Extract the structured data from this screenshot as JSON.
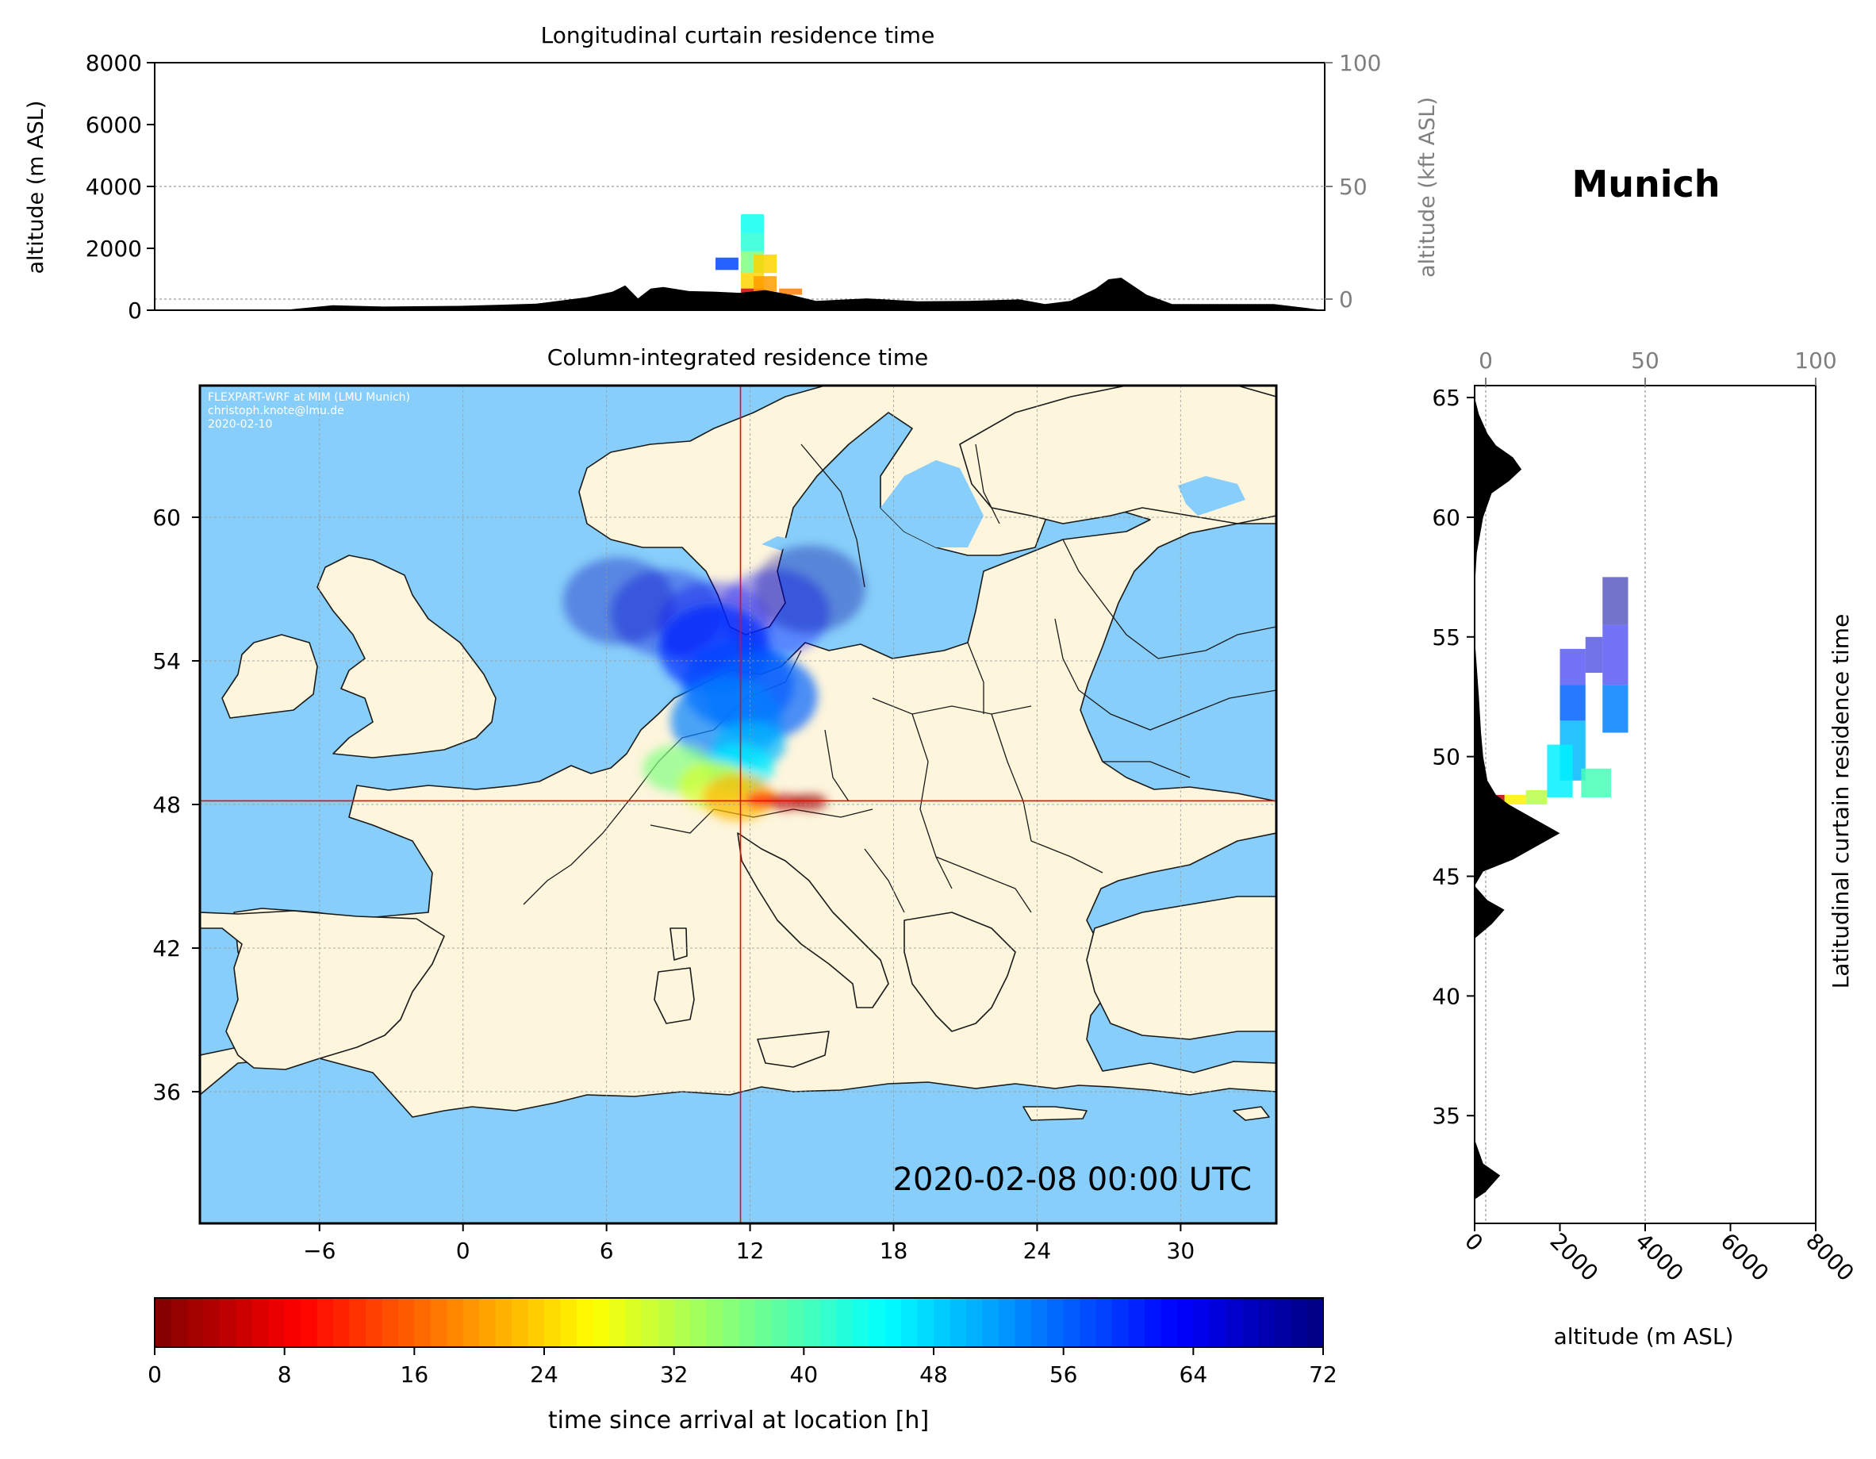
{
  "site": "Munich",
  "colors": {
    "ocean": "#87cefa",
    "land": "#fdf5dc",
    "border": "#1a1a1a",
    "crosshair": "#ff0000",
    "terrain": "#000000",
    "secondary_axis": "#7f7f7f"
  },
  "chart_data": [
    {
      "id": "longitudinal-curtain",
      "type": "heatmap",
      "title": "Longitudinal curtain residence time",
      "ylabel": "altitude (m ASL)",
      "ylabel_right": "altitude (kft ASL)",
      "ylim": [
        0,
        8000
      ],
      "yticks": [
        "0",
        "2000",
        "4000",
        "6000",
        "8000"
      ],
      "yticks_right": [
        "0",
        "50",
        "100"
      ],
      "xlim": [
        -12,
        34
      ],
      "terrain_profile": {
        "x": [
          -12,
          -7,
          -5,
          -3,
          0,
          3,
          5,
          6,
          6.5,
          7,
          7.5,
          8,
          9,
          10,
          11,
          12,
          13,
          14,
          16,
          18,
          20,
          22,
          23,
          24,
          25,
          25.5,
          26,
          27,
          28,
          30,
          32,
          34
        ],
        "altitude": [
          0,
          0,
          160,
          120,
          140,
          210,
          420,
          600,
          800,
          380,
          700,
          750,
          620,
          600,
          560,
          650,
          500,
          300,
          380,
          290,
          300,
          350,
          200,
          300,
          700,
          1000,
          1050,
          500,
          200,
          200,
          200,
          0
        ]
      },
      "plume_cells": [
        {
          "lon": 11.5,
          "alt_min": 2500,
          "alt_max": 3100,
          "hours": 44
        },
        {
          "lon": 11.5,
          "alt_min": 1900,
          "alt_max": 2500,
          "hours": 42
        },
        {
          "lon": 11.5,
          "alt_min": 1200,
          "alt_max": 1900,
          "hours": 36
        },
        {
          "lon": 11.5,
          "alt_min": 700,
          "alt_max": 1200,
          "hours": 24
        },
        {
          "lon": 11.5,
          "alt_min": 400,
          "alt_max": 700,
          "hours": 6
        },
        {
          "lon": 12,
          "alt_min": 1200,
          "alt_max": 1800,
          "hours": 24
        },
        {
          "lon": 12,
          "alt_min": 600,
          "alt_max": 1100,
          "hours": 20
        },
        {
          "lon": 10.5,
          "alt_min": 1300,
          "alt_max": 1700,
          "hours": 58
        },
        {
          "lon": 13,
          "alt_min": 500,
          "alt_max": 700,
          "hours": 18
        }
      ]
    },
    {
      "id": "column-map",
      "type": "heatmap",
      "title": "Column-integrated residence time",
      "annotation": "2020-02-08 00:00 UTC",
      "credit": [
        "FLEXPART-WRF at MIM (LMU Munich)",
        "christoph.knote@lmu.de",
        "2020-02-10"
      ],
      "xlim": [
        -11,
        34
      ],
      "ylim": [
        30.5,
        65.5
      ],
      "xticks": [
        -6,
        0,
        6,
        12,
        18,
        24,
        30
      ],
      "xtick_labels": [
        "−6",
        "0",
        "6",
        "12",
        "18",
        "24",
        "30"
      ],
      "yticks": [
        36,
        42,
        48,
        54,
        60
      ],
      "ytick_labels": [
        "36",
        "42",
        "48",
        "54",
        "60"
      ],
      "location": {
        "lon": 11.6,
        "lat": 48.15
      },
      "plume_cells": [
        {
          "lon": 6.5,
          "lat": 56.5,
          "hours": 68
        },
        {
          "lon": 8.5,
          "lat": 56.0,
          "hours": 66
        },
        {
          "lon": 10.5,
          "lat": 55.5,
          "hours": 64
        },
        {
          "lon": 13.0,
          "lat": 56.0,
          "hours": 62
        },
        {
          "lon": 14.5,
          "lat": 57.0,
          "hours": 70
        },
        {
          "lon": 10.5,
          "lat": 54.5,
          "hours": 60
        },
        {
          "lon": 11.5,
          "lat": 53.0,
          "hours": 58
        },
        {
          "lon": 12.5,
          "lat": 52.5,
          "hours": 56
        },
        {
          "lon": 11.0,
          "lat": 51.5,
          "hours": 54
        },
        {
          "lon": 12.0,
          "lat": 50.5,
          "hours": 50
        },
        {
          "lon": 11.5,
          "lat": 49.5,
          "hours": 46
        },
        {
          "lon": 9.0,
          "lat": 49.5,
          "hours": 36
        },
        {
          "lon": 10.5,
          "lat": 48.8,
          "hours": 30
        },
        {
          "lon": 11.5,
          "lat": 48.3,
          "hours": 22
        },
        {
          "lon": 12.5,
          "lat": 48.2,
          "hours": 10
        },
        {
          "lon": 13.5,
          "lat": 48.1,
          "hours": 4
        },
        {
          "lon": 14.5,
          "lat": 48.1,
          "hours": 2
        }
      ]
    },
    {
      "id": "latitudinal-curtain",
      "type": "heatmap",
      "title": "Latitudinal curtain residence time",
      "xlabel": "altitude (m ASL)",
      "xlim": [
        0,
        8000
      ],
      "xticks": [
        "0",
        "2000",
        "4000",
        "6000",
        "8000"
      ],
      "xticks_top": [
        "0",
        "50",
        "100"
      ],
      "ylim": [
        30.5,
        65.5
      ],
      "yticks": [
        "35",
        "40",
        "45",
        "50",
        "55",
        "60",
        "65"
      ],
      "terrain_profile": {
        "lat": [
          30.5,
          31.5,
          31.8,
          32.5,
          33.0,
          34.0,
          42.4,
          43.0,
          43.6,
          44.0,
          44.6,
          45.2,
          45.7,
          46.2,
          46.8,
          47.2,
          47.6,
          48.0,
          48.4,
          49.0,
          50.0,
          51.0,
          52.5,
          55.0,
          57.0,
          58.5,
          60.0,
          61.0,
          61.5,
          62.0,
          62.5,
          63.0,
          63.5,
          64.3,
          65.0,
          65.5
        ],
        "altitude": [
          0,
          0,
          250,
          600,
          200,
          0,
          0,
          400,
          700,
          300,
          0,
          200,
          900,
          1400,
          2000,
          1600,
          1200,
          800,
          500,
          300,
          200,
          150,
          100,
          0,
          0,
          50,
          200,
          400,
          800,
          1100,
          900,
          500,
          300,
          100,
          0,
          0
        ]
      },
      "plume_cells": [
        {
          "alt_min": 3000,
          "alt_max": 3600,
          "lat_min": 55.5,
          "lat_max": 57.5,
          "hours": 70
        },
        {
          "alt_min": 3000,
          "alt_max": 3600,
          "lat_min": 53.0,
          "lat_max": 55.5,
          "hours": 64
        },
        {
          "alt_min": 3000,
          "alt_max": 3600,
          "lat_min": 51.0,
          "lat_max": 53.0,
          "hours": 54
        },
        {
          "alt_min": 2600,
          "alt_max": 3000,
          "lat_min": 53.5,
          "lat_max": 55.0,
          "hours": 66
        },
        {
          "alt_min": 2000,
          "alt_max": 2600,
          "lat_min": 53.0,
          "lat_max": 54.5,
          "hours": 64
        },
        {
          "alt_min": 2000,
          "alt_max": 2600,
          "lat_min": 51.5,
          "lat_max": 53.0,
          "hours": 56
        },
        {
          "alt_min": 2000,
          "alt_max": 2600,
          "lat_min": 49.0,
          "lat_max": 51.5,
          "hours": 50
        },
        {
          "alt_min": 2500,
          "alt_max": 3200,
          "lat_min": 48.3,
          "lat_max": 49.5,
          "hours": 40
        },
        {
          "alt_min": 1700,
          "alt_max": 2300,
          "lat_min": 48.3,
          "lat_max": 50.5,
          "hours": 46
        },
        {
          "alt_min": 1200,
          "alt_max": 1700,
          "lat_min": 48.0,
          "lat_max": 48.6,
          "hours": 32
        },
        {
          "alt_min": 700,
          "alt_max": 1200,
          "lat_min": 48.0,
          "lat_max": 48.4,
          "hours": 26
        },
        {
          "alt_min": 400,
          "alt_max": 700,
          "lat_min": 48.1,
          "lat_max": 48.4,
          "hours": 4
        }
      ]
    },
    {
      "id": "colorbar",
      "type": "heatmap",
      "label": "time since arrival at location [h]",
      "range": [
        0,
        72
      ],
      "ticks": [
        "0",
        "8",
        "16",
        "24",
        "32",
        "40",
        "48",
        "56",
        "64",
        "72"
      ],
      "cmap": "jet_r"
    }
  ]
}
